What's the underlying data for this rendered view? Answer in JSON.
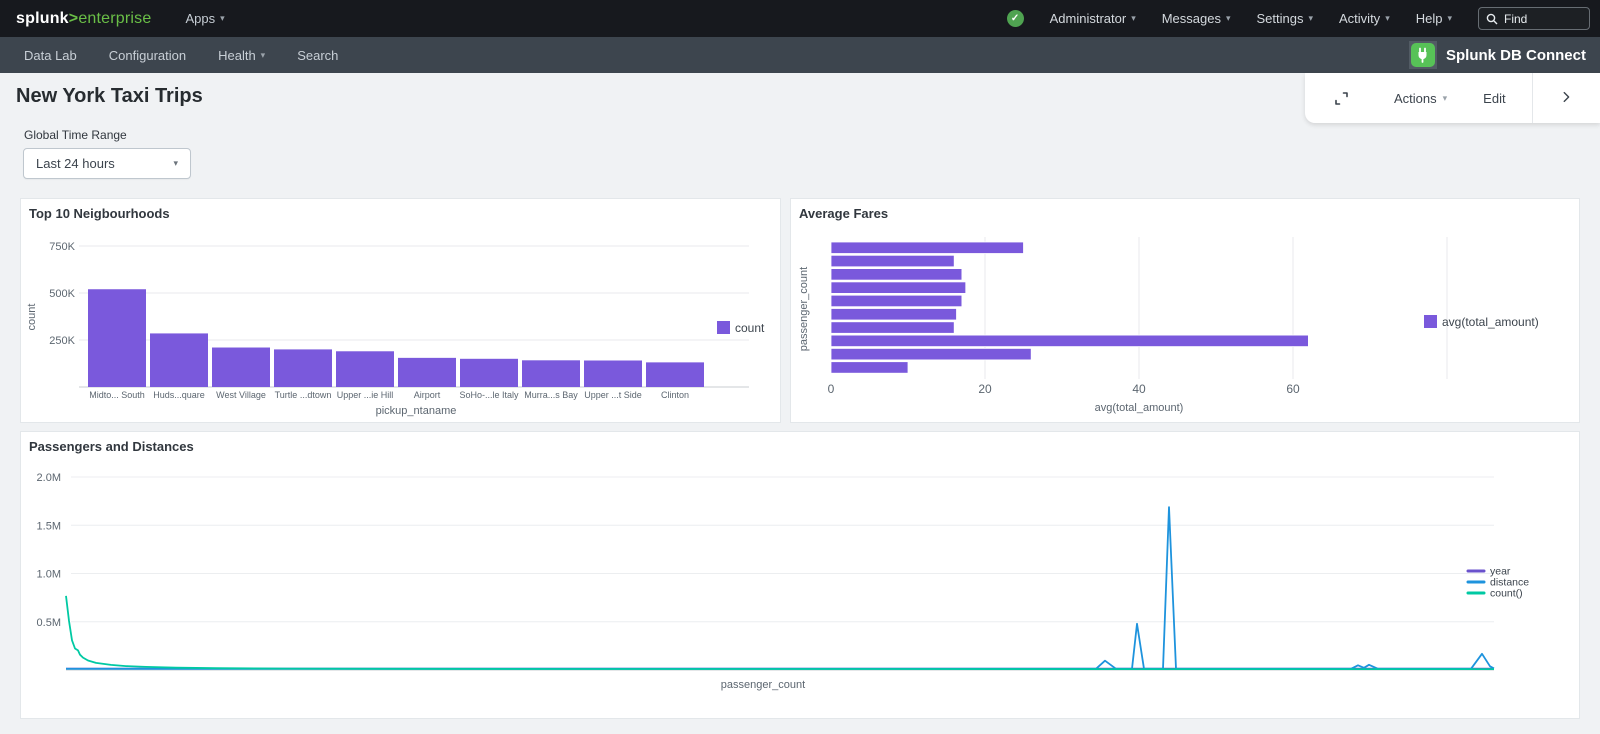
{
  "topbar": {
    "logo_splunk": "splunk",
    "logo_gt": ">",
    "logo_suffix": "enterprise",
    "apps_label": "Apps",
    "menu": [
      "Administrator",
      "Messages",
      "Settings",
      "Activity",
      "Help"
    ],
    "find_placeholder": "Find"
  },
  "appbar": {
    "items": [
      {
        "label": "Data Lab"
      },
      {
        "label": "Configuration"
      },
      {
        "label": "Health"
      },
      {
        "label": "Search"
      }
    ],
    "brand": "Splunk DB Connect"
  },
  "toolbar": {
    "actions_label": "Actions",
    "edit_label": "Edit"
  },
  "page": {
    "title": "New York Taxi Trips",
    "time_range_label": "Global Time Range",
    "time_range_value": "Last 24 hours"
  },
  "colors": {
    "accent_purple": "#7a59dc",
    "line_purple": "#6a52cc",
    "line_blue": "#1e93dd",
    "line_teal": "#00c9a3",
    "logo_green": "#6abf47",
    "badge_green": "#4fa351",
    "plug_green": "#57c257"
  },
  "chart_data": [
    {
      "type": "bar",
      "title": "Top 10 Neigbourhoods",
      "categories": [
        "Midto... South",
        "Huds...quare",
        "West Village",
        "Turtle ...dtown",
        "Upper ...ie Hill",
        "Airport",
        "SoHo-...le Italy",
        "Murra...s Bay",
        "Upper ...t Side",
        "Clinton"
      ],
      "values": [
        520000,
        285000,
        210000,
        200000,
        190000,
        155000,
        150000,
        142000,
        141000,
        131000
      ],
      "xlabel": "pickup_ntaname",
      "ylabel": "count",
      "ytick_values": [
        250000,
        500000,
        750000
      ],
      "ytick_labels": [
        "250K",
        "500K",
        "750K"
      ],
      "ylim": [
        0,
        750000
      ],
      "legend": [
        {
          "label": "count",
          "color": "#7a59dc"
        }
      ],
      "bar_color": "#7a59dc",
      "grid": "horizontal"
    },
    {
      "type": "bar-horizontal",
      "title": "Average Fares",
      "values": [
        25,
        16,
        17,
        17.5,
        17,
        16.3,
        16,
        62,
        26,
        10
      ],
      "xlabel": "avg(total_amount)",
      "ylabel": "passenger_count",
      "xtick_values": [
        0,
        20,
        40,
        60
      ],
      "xtick_labels": [
        "0",
        "20",
        "40",
        "60"
      ],
      "xlim": [
        0,
        80
      ],
      "legend": [
        {
          "label": "avg(total_amount)",
          "color": "#7a59dc"
        }
      ],
      "bar_color": "#7a59dc",
      "grid": "vertical"
    },
    {
      "type": "line",
      "title": "Passengers and Distances",
      "xlabel": "passenger_count",
      "ytick_values": [
        500000,
        1000000,
        1500000,
        2000000
      ],
      "ytick_labels": [
        "0.5M",
        "1.0M",
        "1.5M",
        "2.0M"
      ],
      "ylim": [
        0,
        2070000
      ],
      "legend_position": "right",
      "series": [
        {
          "name": "year",
          "color": "#6a52cc",
          "points": [
            [
              0,
              6000
            ],
            [
              1428,
              6000
            ]
          ]
        },
        {
          "name": "distance",
          "color": "#1e93dd",
          "points": [
            [
              0,
              4000
            ],
            [
              1000,
              4000
            ],
            [
              1030,
              4000
            ],
            [
              1039,
              88000
            ],
            [
              1050,
              4000
            ],
            [
              1066,
              4000
            ],
            [
              1071,
              470000
            ],
            [
              1078,
              4000
            ],
            [
              1097,
              4000
            ],
            [
              1103,
              1680000
            ],
            [
              1110,
              4000
            ],
            [
              1200,
              4000
            ],
            [
              1285,
              4000
            ],
            [
              1292,
              40000
            ],
            [
              1298,
              14000
            ],
            [
              1303,
              46000
            ],
            [
              1312,
              4000
            ],
            [
              1405,
              4000
            ],
            [
              1416,
              160000
            ],
            [
              1424,
              30000
            ],
            [
              1428,
              8000
            ]
          ]
        },
        {
          "name": "count()",
          "color": "#00c9a3",
          "points": [
            [
              0,
              760000
            ],
            [
              3,
              500000
            ],
            [
              6,
              300000
            ],
            [
              9,
              215000
            ],
            [
              12,
              195000
            ],
            [
              14,
              150000
            ],
            [
              17,
              120000
            ],
            [
              22,
              90000
            ],
            [
              30,
              65000
            ],
            [
              45,
              45000
            ],
            [
              60,
              32000
            ],
            [
              80,
              24000
            ],
            [
              110,
              16000
            ],
            [
              150,
              10000
            ],
            [
              220,
              6000
            ],
            [
              320,
              4000
            ],
            [
              500,
              2500
            ],
            [
              800,
              1800
            ],
            [
              1100,
              1200
            ],
            [
              1428,
              1000
            ]
          ]
        }
      ]
    }
  ]
}
